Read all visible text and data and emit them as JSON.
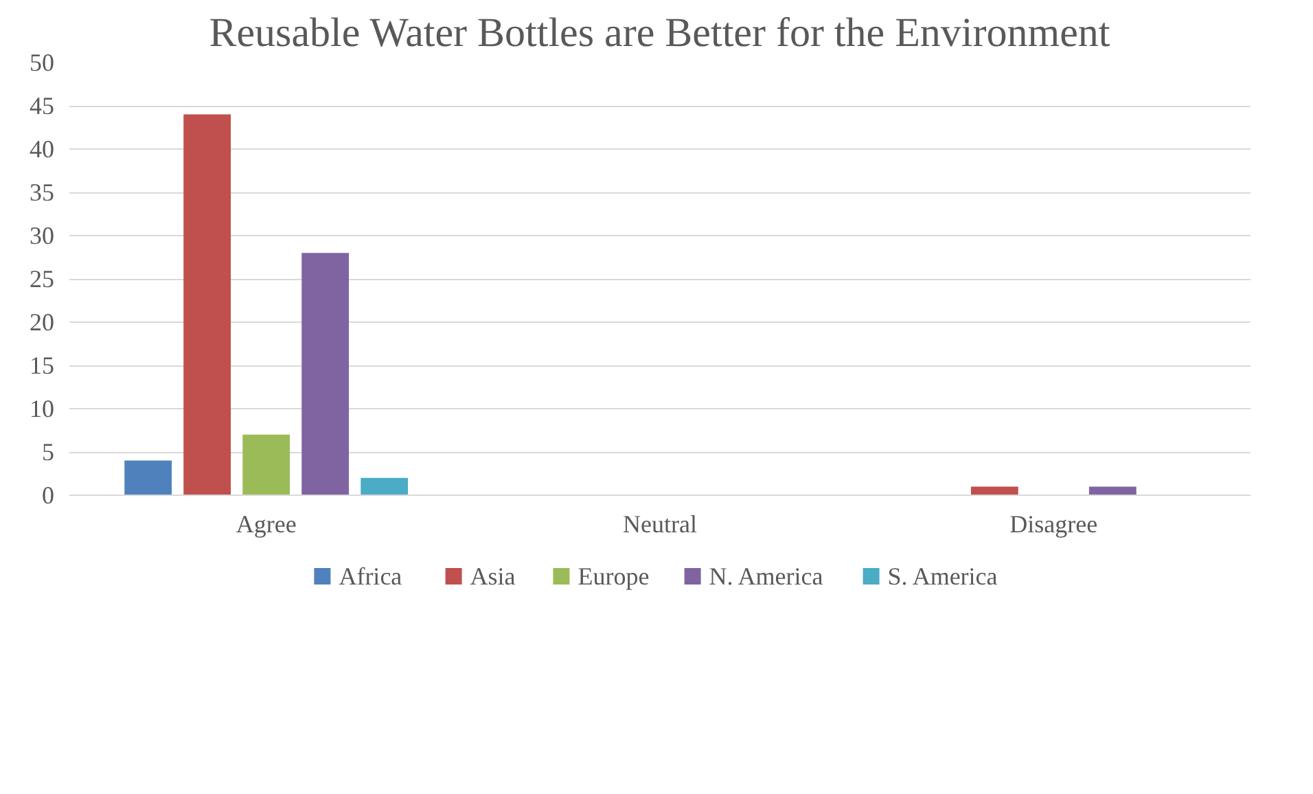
{
  "chart_data": {
    "type": "bar",
    "title": "Reusable Water Bottles are Better for the Environment",
    "categories": [
      "Agree",
      "Neutral",
      "Disagree"
    ],
    "series": [
      {
        "name": "Africa",
        "color": "#4f81bd",
        "values": [
          4,
          0,
          0
        ]
      },
      {
        "name": "Asia",
        "color": "#c0504d",
        "values": [
          44,
          0,
          1
        ]
      },
      {
        "name": "Europe",
        "color": "#9bbb59",
        "values": [
          7,
          0,
          0
        ]
      },
      {
        "name": "N. America",
        "color": "#8064a2",
        "values": [
          28,
          0,
          1
        ]
      },
      {
        "name": "S. America",
        "color": "#4bacc6",
        "values": [
          2,
          0,
          0
        ]
      }
    ],
    "ylim": [
      0,
      50
    ],
    "yticks": [
      0,
      5,
      10,
      15,
      20,
      25,
      30,
      35,
      40,
      45,
      50
    ],
    "grid": "y",
    "legend": "bottom"
  }
}
